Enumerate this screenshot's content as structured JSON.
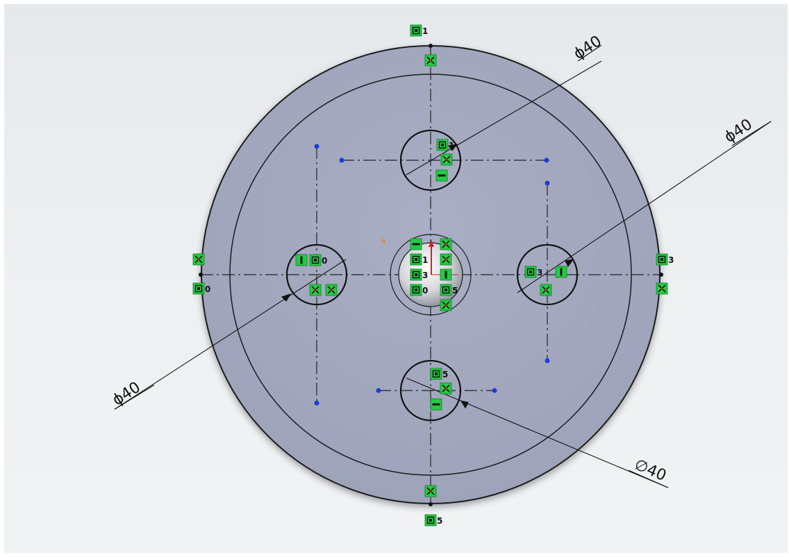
{
  "colors": {
    "background": "#eceef0",
    "face": "#a2a7be",
    "face_edge": "#1a1a1a",
    "centerline": "#222222",
    "endpoint": "#1a3fd6",
    "relation_badge": "#22cc44",
    "origin_red": "#d62020",
    "origin_orange": "#e8781e"
  },
  "dimensions": [
    {
      "id": "dim-top-hole",
      "text": "ϕ40"
    },
    {
      "id": "dim-right-hole",
      "text": "ϕ40"
    },
    {
      "id": "dim-left-hole",
      "text": "ϕ40"
    },
    {
      "id": "dim-bottom-hole",
      "text": "∅40"
    }
  ],
  "relations": {
    "r_top": "1",
    "r_top_hole": "1",
    "r_left_outer": "0",
    "r_left_hole": "0",
    "r_right_outer": "3",
    "r_right_hole": "3",
    "r_bottom": "5",
    "r_bottom_hole": "5",
    "r_center_a": "1",
    "r_center_b": "3",
    "r_center_c": "0",
    "r_center_d": "5"
  },
  "icons": {
    "coincident": "coincident-relation-icon",
    "parallel": "parallel-relation-icon",
    "horizontal": "horizontal-relation-icon",
    "vertical": "vertical-relation-icon",
    "concentric": "concentric-relation-icon"
  }
}
